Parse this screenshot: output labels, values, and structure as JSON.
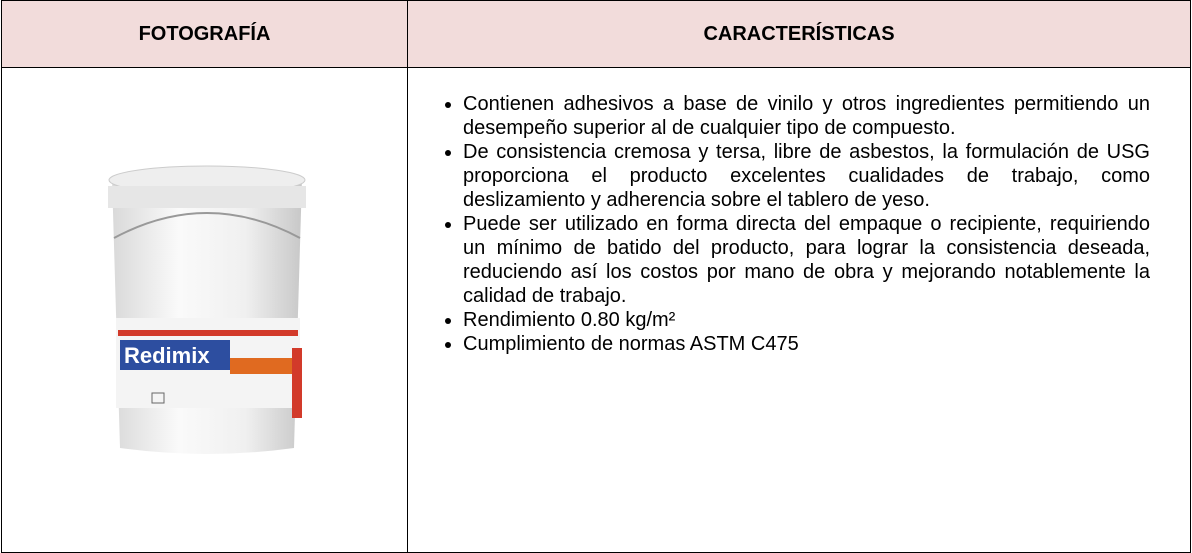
{
  "table": {
    "headers": [
      "FOTOGRAFÍA",
      "CARACTERÍSTICAS"
    ],
    "photo_label": "Redimix",
    "items": [
      "Contienen adhesivos a base de vinilo y otros ingredientes permitiendo un desempeño superior al de cualquier tipo de compuesto.",
      "De consistencia cremosa y tersa, libre de asbestos, la formulación de USG proporciona el producto excelentes cualidades de trabajo, como deslizamiento y adherencia sobre el tablero de yeso.",
      "Puede ser utilizado en forma directa del empaque o recipiente, requiriendo un mínimo de batido del producto, para lograr la consistencia deseada, reduciendo así los costos por mano de obra y mejorando notablemente la calidad de trabajo.",
      "Rendimiento 0.80 kg/m²",
      "Cumplimiento de normas ASTM C475"
    ]
  }
}
